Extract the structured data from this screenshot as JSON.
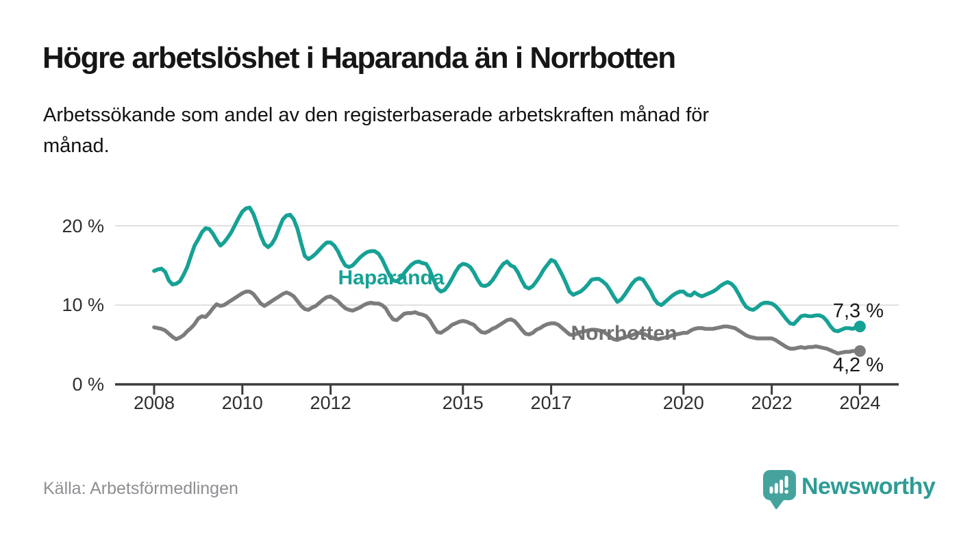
{
  "title": "Högre arbetslöshet i Haparanda än i Norrbotten",
  "subtitle": "Arbetssökande som andel av den registerbaserade arbetskraften månad för månad.",
  "source": "Källa: Arbetsförmedlingen",
  "branding": {
    "name": "Newsworthy",
    "icon": "bar-chart-speech-bubble-icon",
    "icon_color": "#45a39e",
    "text_color": "#2d9c95"
  },
  "colors": {
    "haparanda_line": "#16a195",
    "norrbotten_line": "#7c7c7c",
    "gridline": "#d8d8d8",
    "axis": "#3c3c3c",
    "axis_text": "#2e2e2e",
    "value_text": "#1a1a1a"
  },
  "chart_data": {
    "type": "line",
    "title": "Högre arbetslöshet i Haparanda än i Norrbotten",
    "subtitle": "Arbetssökande som andel av den registerbaserade arbetskraften månad för månad.",
    "unit": "%",
    "x_start_year": 2008,
    "x_step_months": 1,
    "x_end": "2024-01",
    "ylim": [
      0,
      24
    ],
    "grid": "horizontal",
    "yticks": [
      {
        "value": 0,
        "label": "0 %"
      },
      {
        "value": 10,
        "label": "10 %"
      },
      {
        "value": 20,
        "label": "20 %"
      }
    ],
    "xticks": [
      {
        "value": 2008,
        "label": "2008"
      },
      {
        "value": 2010,
        "label": "2010"
      },
      {
        "value": 2012,
        "label": "2012"
      },
      {
        "value": 2015,
        "label": "2015"
      },
      {
        "value": 2017,
        "label": "2017"
      },
      {
        "value": 2020,
        "label": "2020"
      },
      {
        "value": 2022,
        "label": "2022"
      },
      {
        "value": 2024,
        "label": "2024"
      }
    ],
    "series": [
      {
        "name": "Haparanda",
        "color": "#16a195",
        "end_label": "7,3 %",
        "end_value": 7.3,
        "values": [
          14.3,
          14.5,
          14.6,
          14.2,
          13.1,
          12.6,
          12.7,
          13.0,
          13.8,
          14.8,
          16.2,
          17.5,
          18.3,
          19.2,
          19.7,
          19.6,
          19.0,
          18.2,
          17.5,
          17.9,
          18.5,
          19.2,
          20.1,
          21.0,
          21.8,
          22.2,
          22.3,
          21.5,
          20.2,
          18.8,
          17.7,
          17.3,
          17.7,
          18.5,
          19.7,
          20.8,
          21.3,
          21.4,
          20.8,
          19.6,
          17.8,
          16.2,
          15.8,
          16.1,
          16.5,
          17.0,
          17.5,
          17.9,
          17.9,
          17.5,
          16.8,
          15.8,
          15.0,
          14.8,
          15.0,
          15.5,
          16.0,
          16.4,
          16.7,
          16.8,
          16.8,
          16.5,
          15.8,
          14.8,
          13.8,
          13.1,
          13.0,
          13.4,
          14.0,
          14.6,
          15.1,
          15.4,
          15.5,
          15.3,
          15.2,
          14.4,
          13.2,
          12.1,
          11.7,
          11.9,
          12.5,
          13.3,
          14.2,
          14.9,
          15.2,
          15.1,
          14.8,
          14.1,
          13.2,
          12.5,
          12.4,
          12.6,
          13.1,
          13.8,
          14.6,
          15.2,
          15.5,
          15.0,
          14.8,
          14.1,
          13.1,
          12.3,
          12.1,
          12.4,
          13.0,
          13.7,
          14.5,
          15.1,
          15.7,
          15.5,
          14.7,
          13.8,
          12.8,
          11.7,
          11.3,
          11.5,
          11.7,
          12.1,
          12.6,
          13.2,
          13.3,
          13.3,
          13.0,
          12.6,
          11.9,
          11.1,
          10.4,
          10.7,
          11.3,
          12.0,
          12.7,
          13.2,
          13.4,
          13.2,
          12.5,
          11.8,
          10.8,
          10.2,
          10.0,
          10.4,
          10.8,
          11.2,
          11.5,
          11.7,
          11.7,
          11.3,
          11.2,
          11.6,
          11.3,
          11.1,
          11.3,
          11.5,
          11.7,
          12.0,
          12.4,
          12.7,
          12.9,
          12.7,
          12.2,
          11.4,
          10.5,
          9.8,
          9.5,
          9.4,
          9.7,
          10.1,
          10.3,
          10.3,
          10.2,
          9.9,
          9.4,
          8.8,
          8.2,
          7.7,
          7.6,
          8.1,
          8.6,
          8.7,
          8.6,
          8.6,
          8.7,
          8.7,
          8.5,
          8.0,
          7.3,
          6.8,
          6.7,
          6.9,
          7.1,
          7.1,
          7.0,
          7.2,
          7.3
        ]
      },
      {
        "name": "Norrbotten",
        "color": "#7c7c7c",
        "end_label": "4,2 %",
        "end_value": 4.2,
        "values": [
          7.2,
          7.1,
          7.0,
          6.8,
          6.4,
          6.0,
          5.7,
          5.9,
          6.2,
          6.7,
          7.1,
          7.6,
          8.3,
          8.6,
          8.5,
          9.0,
          9.6,
          10.1,
          9.9,
          10.0,
          10.3,
          10.6,
          10.9,
          11.2,
          11.5,
          11.7,
          11.7,
          11.4,
          10.8,
          10.2,
          9.9,
          10.2,
          10.5,
          10.8,
          11.1,
          11.4,
          11.6,
          11.4,
          11.1,
          10.5,
          9.9,
          9.5,
          9.4,
          9.7,
          9.9,
          10.3,
          10.7,
          11.0,
          11.1,
          10.8,
          10.5,
          10.0,
          9.6,
          9.4,
          9.3,
          9.5,
          9.7,
          10.0,
          10.2,
          10.3,
          10.2,
          10.2,
          10.0,
          9.6,
          8.8,
          8.2,
          8.1,
          8.5,
          8.9,
          9.0,
          9.0,
          9.1,
          8.9,
          8.8,
          8.6,
          8.1,
          7.3,
          6.6,
          6.5,
          6.8,
          7.1,
          7.5,
          7.7,
          7.9,
          8.0,
          7.9,
          7.7,
          7.5,
          7.0,
          6.6,
          6.5,
          6.7,
          7.0,
          7.2,
          7.5,
          7.8,
          8.1,
          8.2,
          8.0,
          7.5,
          6.9,
          6.4,
          6.3,
          6.5,
          6.9,
          7.1,
          7.4,
          7.6,
          7.7,
          7.7,
          7.5,
          7.1,
          6.7,
          6.3,
          6.2,
          6.4,
          6.6,
          6.7,
          6.8,
          6.9,
          6.9,
          6.8,
          6.7,
          6.4,
          6.0,
          5.7,
          5.6,
          5.8,
          5.9,
          6.1,
          6.2,
          6.4,
          6.5,
          6.4,
          6.2,
          6.0,
          5.8,
          5.7,
          5.8,
          5.9,
          6.0,
          6.2,
          6.3,
          6.4,
          6.5,
          6.5,
          6.8,
          7.0,
          7.1,
          7.1,
          7.0,
          7.0,
          7.0,
          7.1,
          7.2,
          7.3,
          7.3,
          7.2,
          7.1,
          6.8,
          6.5,
          6.2,
          6.0,
          5.9,
          5.8,
          5.8,
          5.8,
          5.8,
          5.8,
          5.6,
          5.3,
          5.0,
          4.7,
          4.5,
          4.5,
          4.6,
          4.7,
          4.6,
          4.7,
          4.7,
          4.8,
          4.7,
          4.6,
          4.5,
          4.3,
          4.1,
          3.9,
          4.0,
          4.1,
          4.1,
          4.2,
          4.2,
          4.2
        ]
      }
    ],
    "legend_position": "inline-labels"
  }
}
